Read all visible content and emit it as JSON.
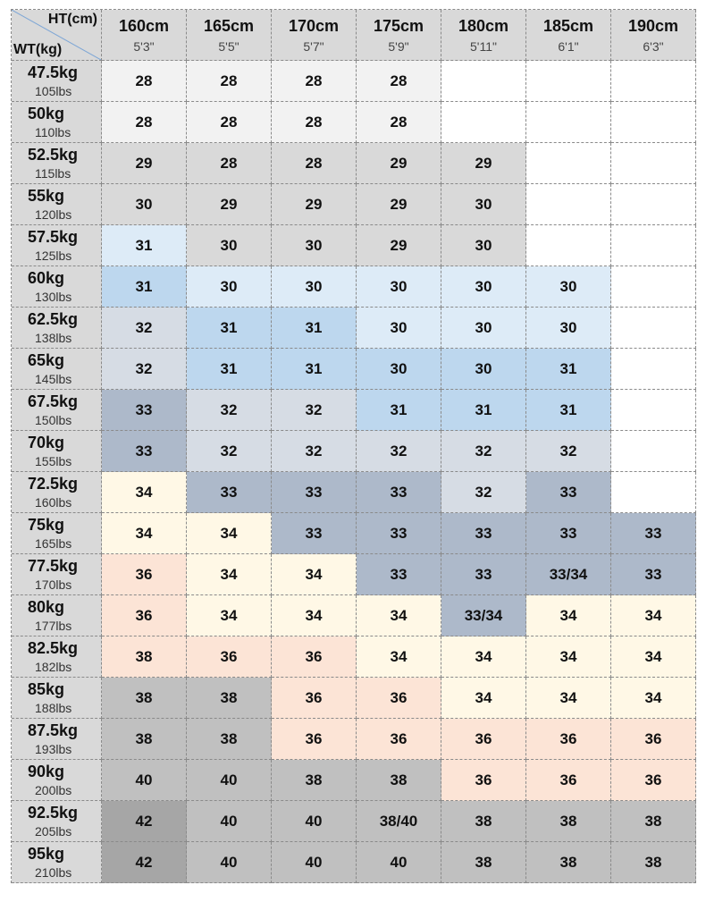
{
  "table": {
    "corner": {
      "top": "HT(cm)",
      "bottom": "WT(kg)"
    },
    "columns": [
      {
        "cm": "160cm",
        "ft": "5'3\""
      },
      {
        "cm": "165cm",
        "ft": "5'5\""
      },
      {
        "cm": "170cm",
        "ft": "5'7\""
      },
      {
        "cm": "175cm",
        "ft": "5'9\""
      },
      {
        "cm": "180cm",
        "ft": "5'11\""
      },
      {
        "cm": "185cm",
        "ft": "6'1\""
      },
      {
        "cm": "190cm",
        "ft": "6'3\""
      }
    ],
    "rows": [
      {
        "kg": "47.5kg",
        "lbs": "105lbs",
        "cells": [
          "28",
          "28",
          "28",
          "28",
          null,
          null,
          null
        ]
      },
      {
        "kg": "50kg",
        "lbs": "110lbs",
        "cells": [
          "28",
          "28",
          "28",
          "28",
          null,
          null,
          null
        ]
      },
      {
        "kg": "52.5kg",
        "lbs": "115lbs",
        "cells": [
          "29",
          "28",
          "28",
          "29",
          "29",
          null,
          null
        ]
      },
      {
        "kg": "55kg",
        "lbs": "120lbs",
        "cells": [
          "30",
          "29",
          "29",
          "29",
          "30",
          null,
          null
        ]
      },
      {
        "kg": "57.5kg",
        "lbs": "125lbs",
        "cells": [
          "31",
          "30",
          "30",
          "29",
          "30",
          null,
          null
        ]
      },
      {
        "kg": "60kg",
        "lbs": "130lbs",
        "cells": [
          "31",
          "30",
          "30",
          "30",
          "30",
          "30",
          null
        ]
      },
      {
        "kg": "62.5kg",
        "lbs": "138lbs",
        "cells": [
          "32",
          "31",
          "31",
          "30",
          "30",
          "30",
          null
        ]
      },
      {
        "kg": "65kg",
        "lbs": "145lbs",
        "cells": [
          "32",
          "31",
          "31",
          "30",
          "30",
          "31",
          null
        ]
      },
      {
        "kg": "67.5kg",
        "lbs": "150lbs",
        "cells": [
          "33",
          "32",
          "32",
          "31",
          "31",
          "31",
          null
        ]
      },
      {
        "kg": "70kg",
        "lbs": "155lbs",
        "cells": [
          "33",
          "32",
          "32",
          "32",
          "32",
          "32",
          null
        ]
      },
      {
        "kg": "72.5kg",
        "lbs": "160lbs",
        "cells": [
          "34",
          "33",
          "33",
          "33",
          "32",
          "33",
          null
        ]
      },
      {
        "kg": "75kg",
        "lbs": "165lbs",
        "cells": [
          "34",
          "34",
          "33",
          "33",
          "33",
          "33",
          "33"
        ]
      },
      {
        "kg": "77.5kg",
        "lbs": "170lbs",
        "cells": [
          "36",
          "34",
          "34",
          "33",
          "33",
          "33/34",
          "33"
        ]
      },
      {
        "kg": "80kg",
        "lbs": "177lbs",
        "cells": [
          "36",
          "34",
          "34",
          "34",
          "33/34",
          "34",
          "34"
        ]
      },
      {
        "kg": "82.5kg",
        "lbs": "182lbs",
        "cells": [
          "38",
          "36",
          "36",
          "34",
          "34",
          "34",
          "34"
        ]
      },
      {
        "kg": "85kg",
        "lbs": "188lbs",
        "cells": [
          "38",
          "38",
          "36",
          "36",
          "34",
          "34",
          "34"
        ]
      },
      {
        "kg": "87.5kg",
        "lbs": "193lbs",
        "cells": [
          "38",
          "38",
          "36",
          "36",
          "36",
          "36",
          "36"
        ]
      },
      {
        "kg": "90kg",
        "lbs": "200lbs",
        "cells": [
          "40",
          "40",
          "38",
          "38",
          "36",
          "36",
          "36"
        ]
      },
      {
        "kg": "92.5kg",
        "lbs": "205lbs",
        "cells": [
          "42",
          "40",
          "40",
          "38/40",
          "38",
          "38",
          "38"
        ]
      },
      {
        "kg": "95kg",
        "lbs": "210lbs",
        "cells": [
          "42",
          "40",
          "40",
          "40",
          "38",
          "38",
          "38"
        ]
      }
    ]
  }
}
